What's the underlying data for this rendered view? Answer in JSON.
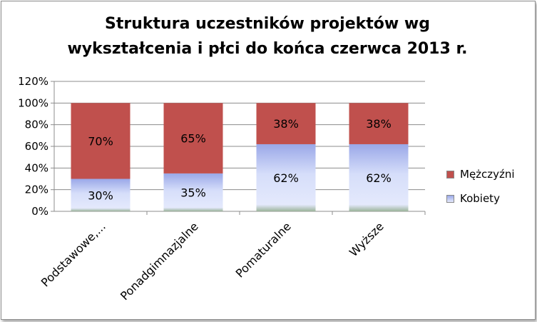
{
  "chart_data": {
    "type": "bar",
    "stacked": "percent",
    "title_lines": [
      "Struktura uczestników projektów wg",
      "wykształcenia i płci do końca czerwca 2013 r."
    ],
    "categories": [
      "Podstawowe,...",
      "Ponadgimnazjalne",
      "Pomaturalne",
      "Wyższe"
    ],
    "series": [
      {
        "name": "Kobiety",
        "values": [
          30,
          35,
          62,
          62
        ],
        "labels": [
          "30%",
          "35%",
          "62%",
          "62%"
        ],
        "color": "#c9d3f7"
      },
      {
        "name": "Mężczyźni",
        "values": [
          70,
          65,
          38,
          38
        ],
        "labels": [
          "70%",
          "65%",
          "38%",
          "38%"
        ],
        "color": "#c0504d"
      }
    ],
    "yticks": [
      "0%",
      "20%",
      "40%",
      "60%",
      "80%",
      "100%",
      "120%"
    ],
    "ylim": [
      0,
      120
    ],
    "grid": true,
    "legend_position": "right"
  }
}
